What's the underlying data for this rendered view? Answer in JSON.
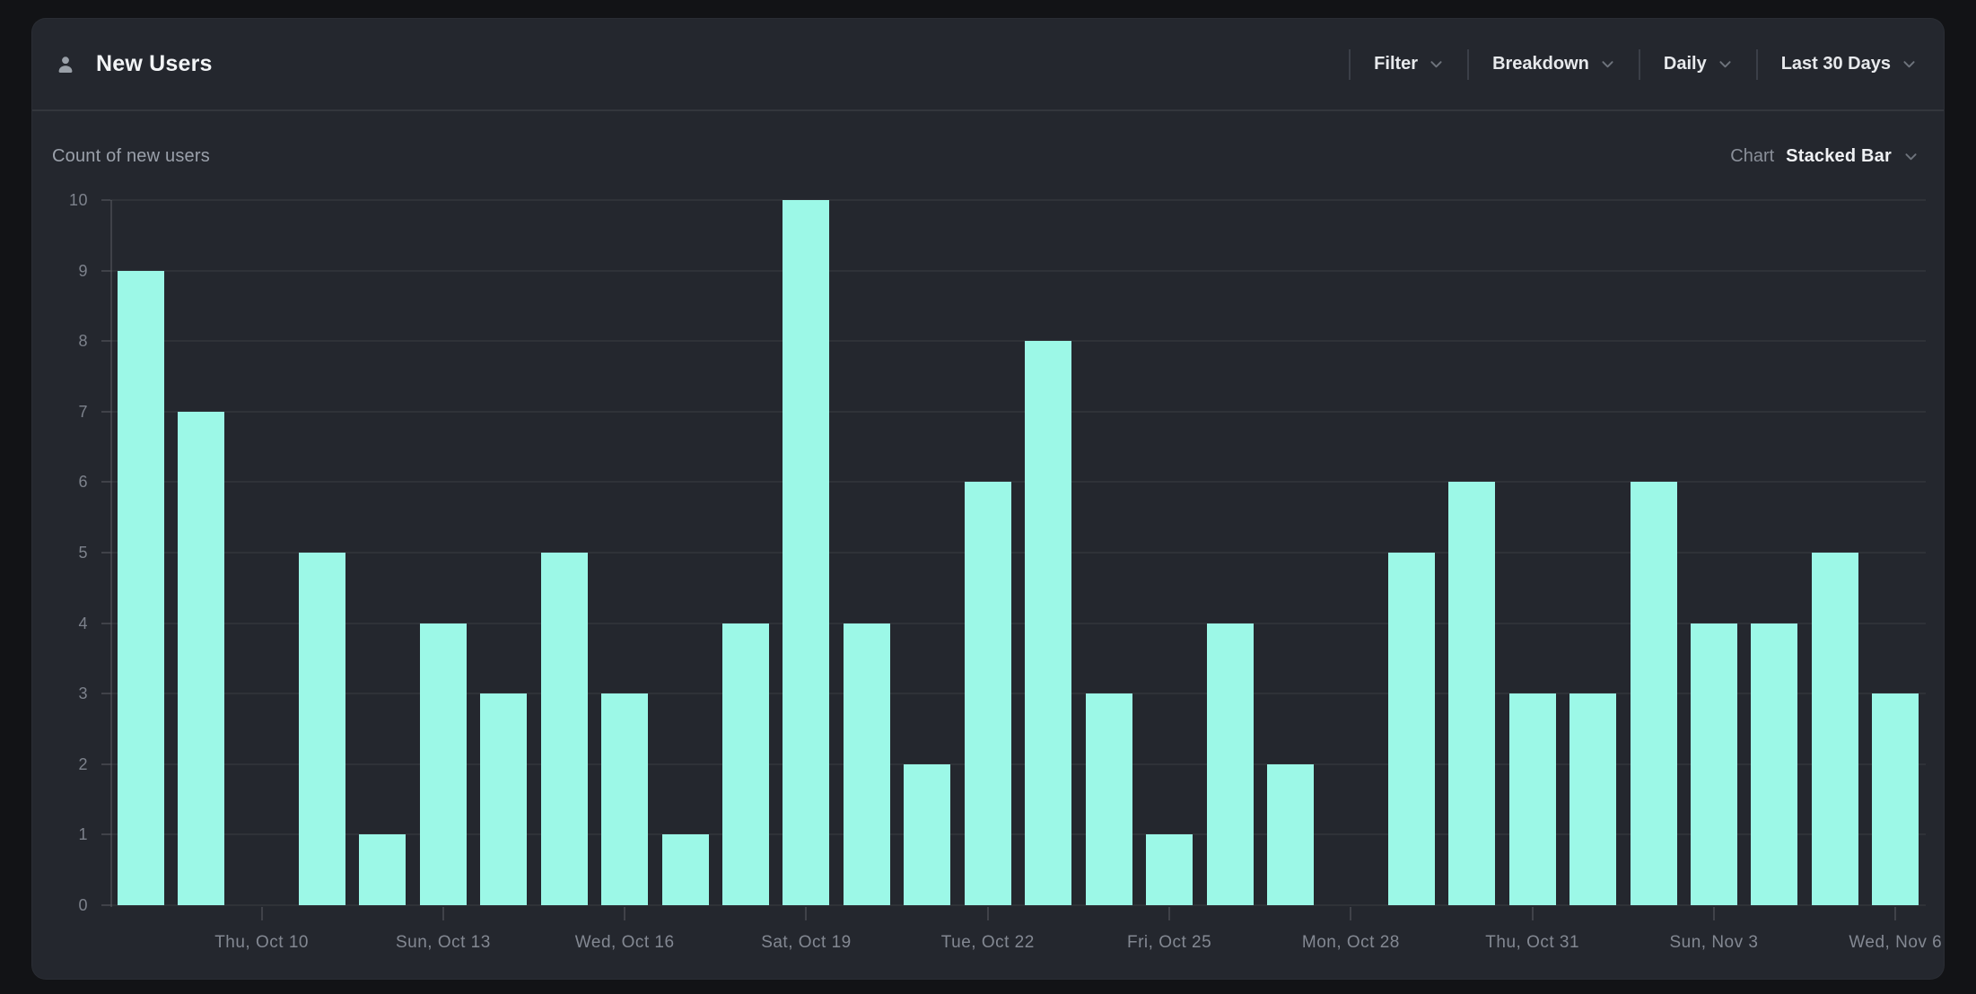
{
  "header": {
    "title": "New Users",
    "controls": [
      {
        "id": "filter",
        "label": "Filter"
      },
      {
        "id": "breakdown",
        "label": "Breakdown"
      },
      {
        "id": "granularity",
        "label": "Daily"
      },
      {
        "id": "date-range",
        "label": "Last 30 Days"
      }
    ]
  },
  "subheader": {
    "metric_label": "Count of new users",
    "chart_label": "Chart",
    "chart_type": "Stacked Bar"
  },
  "icons": {
    "title_icon": "user-icon",
    "dropdown_icon": "chevron-down-icon"
  },
  "colors": {
    "accent_bar": "#9CF8E7",
    "card_background": "#24272E",
    "page_background": "#121316",
    "text_primary": "#F2F4F6",
    "text_muted": "#8A8F99"
  },
  "chart_data": {
    "type": "bar",
    "title": "Count of new users",
    "num_points": 30,
    "values": [
      9,
      7,
      0,
      5,
      1,
      4,
      3,
      5,
      3,
      1,
      4,
      10,
      4,
      2,
      6,
      8,
      3,
      1,
      4,
      2,
      0,
      5,
      6,
      3,
      3,
      6,
      4,
      4,
      5,
      3
    ],
    "ylim": [
      0,
      10
    ],
    "yticks": [
      0,
      1,
      2,
      3,
      4,
      5,
      6,
      7,
      8,
      9,
      10
    ],
    "xticks": [
      {
        "index": 2,
        "label": "Thu, Oct 10"
      },
      {
        "index": 5,
        "label": "Sun, Oct 13"
      },
      {
        "index": 8,
        "label": "Wed, Oct 16"
      },
      {
        "index": 11,
        "label": "Sat, Oct 19"
      },
      {
        "index": 14,
        "label": "Tue, Oct 22"
      },
      {
        "index": 17,
        "label": "Fri, Oct 25"
      },
      {
        "index": 20,
        "label": "Mon, Oct 28"
      },
      {
        "index": 23,
        "label": "Thu, Oct 31"
      },
      {
        "index": 26,
        "label": "Sun, Nov 3"
      },
      {
        "index": 29,
        "label": "Wed, Nov 6"
      }
    ],
    "grid": "horizontal",
    "legend": "none",
    "bar_color": "#9CF8E7"
  }
}
